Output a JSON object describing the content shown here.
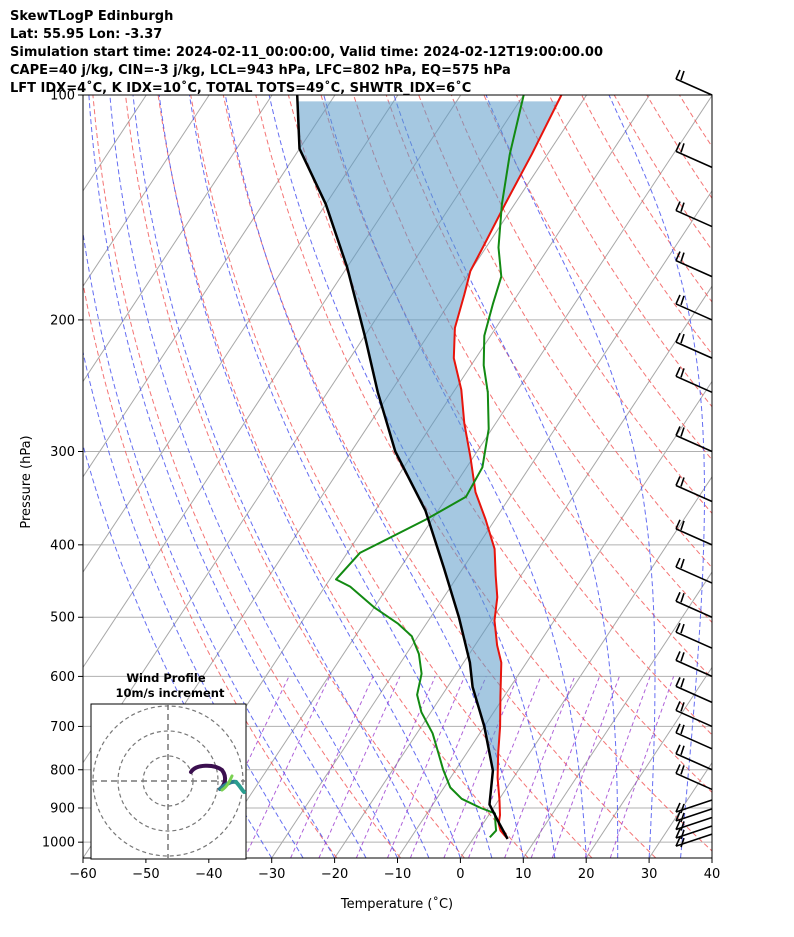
{
  "header": {
    "line1": "SkewTLogP Edinburgh",
    "line2": "Lat: 55.95   Lon: -3.37",
    "line3": "Simulation start time: 2024-02-11_00:00:00, Valid time: 2024-02-12T19:00:00.00",
    "line4": "CAPE=40 j/kg, CIN=-3 j/kg, LCL=943 hPa, LFC=802 hPa, EQ=575 hPa",
    "line5": "LFT IDX=4˚C, K IDX=10˚C, TOTAL TOTS=49˚C, SHWTR_IDX=6˚C"
  },
  "chart_data": {
    "type": "line",
    "title": "",
    "xlabel": "Temperature (˚C)",
    "ylabel": "Pressure (hPa)",
    "xlim": [
      -60,
      40
    ],
    "ylim": [
      1050,
      100
    ],
    "yscale": "log",
    "skew": true,
    "grid": true,
    "x_ticks": [
      -60,
      -50,
      -40,
      -30,
      -20,
      -10,
      0,
      10,
      20,
      30,
      40
    ],
    "x_tick_labels": [
      "−60",
      "−50",
      "−40",
      "−30",
      "−20",
      "−10",
      "0",
      "10",
      "20",
      "30",
      "40"
    ],
    "y_ticks": [
      100,
      200,
      300,
      400,
      500,
      600,
      700,
      800,
      900,
      1000
    ],
    "y_tick_labels": [
      "100",
      "200",
      "300",
      "400",
      "500",
      "600",
      "700",
      "800",
      "900",
      "1000"
    ],
    "colors": {
      "temperature": "#e8140c",
      "dewpoint": "#128a12",
      "parcel": "#000000",
      "cape_fill": "#5b9ac8",
      "dry_adiabat": "#f25c5c",
      "moist_adiabat": "#4a55f0",
      "mixing_ratio": "#9b3bd0",
      "isotherm": "#a8a8a8",
      "isobar": "#b0b0b0"
    },
    "series": [
      {
        "id": "temperature",
        "points": [
          [
            5.5,
            990
          ],
          [
            3.5,
            965
          ],
          [
            2.5,
            945
          ],
          [
            1.8,
            920
          ],
          [
            0.2,
            880
          ],
          [
            -2.5,
            820
          ],
          [
            -5,
            760
          ],
          [
            -7.5,
            700
          ],
          [
            -10.5,
            640
          ],
          [
            -14,
            575
          ],
          [
            -16.5,
            545
          ],
          [
            -19.5,
            505
          ],
          [
            -21.5,
            470
          ],
          [
            -24,
            440
          ],
          [
            -27,
            405
          ],
          [
            -31.5,
            370
          ],
          [
            -36,
            340
          ],
          [
            -40.5,
            305
          ],
          [
            -45,
            275
          ],
          [
            -49,
            248
          ],
          [
            -53.5,
            225
          ],
          [
            -56.5,
            205
          ],
          [
            -58.5,
            185
          ],
          [
            -60,
            172
          ],
          [
            -60.5,
            160
          ],
          [
            -61.5,
            140
          ],
          [
            -62.5,
            120
          ],
          [
            -64,
            100
          ]
        ]
      },
      {
        "id": "dewpoint",
        "points": [
          [
            2.5,
            985
          ],
          [
            2.8,
            965
          ],
          [
            2,
            945
          ],
          [
            0.8,
            915
          ],
          [
            -2,
            900
          ],
          [
            -6,
            875
          ],
          [
            -9,
            845
          ],
          [
            -12,
            800
          ],
          [
            -14.5,
            760
          ],
          [
            -17.5,
            715
          ],
          [
            -21.5,
            670
          ],
          [
            -24,
            635
          ],
          [
            -25.5,
            595
          ],
          [
            -28,
            560
          ],
          [
            -31,
            530
          ],
          [
            -34.5,
            510
          ],
          [
            -40,
            485
          ],
          [
            -46,
            455
          ],
          [
            -49,
            445
          ],
          [
            -48,
            410
          ],
          [
            -41,
            370
          ],
          [
            -37,
            345
          ],
          [
            -37.5,
            315
          ],
          [
            -40.5,
            280
          ],
          [
            -44.5,
            250
          ],
          [
            -48,
            230
          ],
          [
            -51,
            210
          ],
          [
            -53,
            190
          ],
          [
            -54.5,
            175
          ],
          [
            -58,
            160
          ],
          [
            -62,
            140
          ],
          [
            -66,
            120
          ],
          [
            -70,
            100
          ]
        ]
      },
      {
        "id": "parcel",
        "points": [
          [
            5.5,
            990
          ],
          [
            2.5,
            943
          ],
          [
            -1,
            890
          ],
          [
            -4,
            802
          ],
          [
            -10,
            700
          ],
          [
            -16,
            620
          ],
          [
            -19,
            575
          ],
          [
            -25.5,
            500
          ],
          [
            -33,
            430
          ],
          [
            -42,
            360
          ],
          [
            -53,
            300
          ],
          [
            -62,
            250
          ],
          [
            -70,
            210
          ],
          [
            -80,
            170
          ],
          [
            -90,
            140
          ],
          [
            -100,
            118
          ],
          [
            -106,
            100
          ]
        ]
      }
    ],
    "cape_region": {
      "from_hPa": 802,
      "to_hPa": 100,
      "description_source": "shaded between temperature and parcel"
    },
    "wind_barbs_pressure_hPa": [
      100,
      125,
      150,
      175,
      200,
      225,
      250,
      300,
      350,
      400,
      450,
      500,
      550,
      600,
      650,
      700,
      750,
      800,
      850,
      900,
      925,
      950,
      975,
      1000
    ],
    "inset": {
      "title": "Wind Profile",
      "subtitle": "10m/s increment",
      "rings": 3
    }
  }
}
